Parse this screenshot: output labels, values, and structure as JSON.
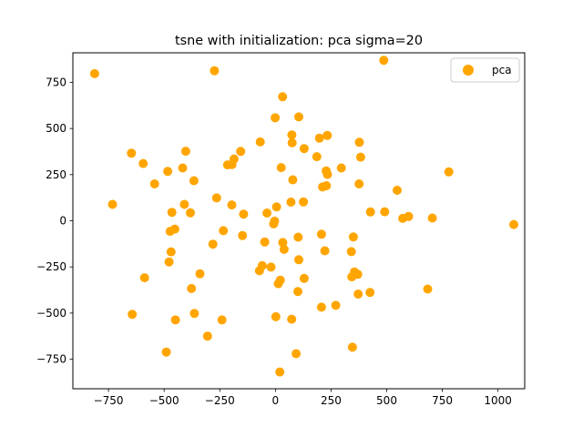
{
  "chart_data": {
    "type": "scatter",
    "title": "tsne with initialization: pca sigma=20",
    "xlabel": "",
    "ylabel": "",
    "xlim": [
      -910,
      1120
    ],
    "ylim": [
      -910,
      910
    ],
    "xticks": [
      -750,
      -500,
      -250,
      0,
      250,
      500,
      750,
      1000
    ],
    "yticks": [
      -750,
      -500,
      -250,
      0,
      250,
      500,
      750
    ],
    "x_tick_labels": [
      "−750",
      "−500",
      "−250",
      "0",
      "250",
      "500",
      "750",
      "1000"
    ],
    "y_tick_labels": [
      "−750",
      "−500",
      "−250",
      "0",
      "250",
      "500",
      "750"
    ],
    "grid": false,
    "legend_position": "top-right",
    "series": [
      {
        "name": "pca",
        "color": "#ffa500",
        "points": [
          [
            -812,
            797
          ],
          [
            -274,
            813
          ],
          [
            487,
            869
          ],
          [
            32,
            672
          ],
          [
            -1,
            558
          ],
          [
            105,
            563
          ],
          [
            233,
            462
          ],
          [
            74,
            465
          ],
          [
            198,
            448
          ],
          [
            -68,
            427
          ],
          [
            75,
            422
          ],
          [
            377,
            425
          ],
          [
            129,
            391
          ],
          [
            -156,
            376
          ],
          [
            -403,
            377
          ],
          [
            -647,
            366
          ],
          [
            186,
            347
          ],
          [
            383,
            345
          ],
          [
            -594,
            310
          ],
          [
            -215,
            303
          ],
          [
            -186,
            335
          ],
          [
            -195,
            305
          ],
          [
            26,
            288
          ],
          [
            296,
            286
          ],
          [
            -417,
            286
          ],
          [
            -484,
            268
          ],
          [
            779,
            265
          ],
          [
            228,
            270
          ],
          [
            234,
            251
          ],
          [
            78,
            222
          ],
          [
            -366,
            217
          ],
          [
            376,
            200
          ],
          [
            229,
            190
          ],
          [
            212,
            183
          ],
          [
            -543,
            200
          ],
          [
            547,
            165
          ],
          [
            -264,
            124
          ],
          [
            70,
            101
          ],
          [
            126,
            102
          ],
          [
            -732,
            89
          ],
          [
            -196,
            86
          ],
          [
            -409,
            89
          ],
          [
            5,
            75
          ],
          [
            -382,
            43
          ],
          [
            -465,
            46
          ],
          [
            -143,
            36
          ],
          [
            -38,
            42
          ],
          [
            427,
            48
          ],
          [
            491,
            49
          ],
          [
            598,
            23
          ],
          [
            572,
            13
          ],
          [
            705,
            15
          ],
          [
            1071,
            -20
          ],
          [
            -4,
            -2
          ],
          [
            -8,
            -17
          ],
          [
            -234,
            -54
          ],
          [
            -452,
            -45
          ],
          [
            -473,
            -57
          ],
          [
            207,
            -73
          ],
          [
            -148,
            -80
          ],
          [
            102,
            -89
          ],
          [
            350,
            -88
          ],
          [
            -48,
            -115
          ],
          [
            33,
            -118
          ],
          [
            -281,
            -127
          ],
          [
            39,
            -155
          ],
          [
            222,
            -163
          ],
          [
            -469,
            -168
          ],
          [
            341,
            -167
          ],
          [
            -478,
            -223
          ],
          [
            105,
            -211
          ],
          [
            -20,
            -251
          ],
          [
            -59,
            -243
          ],
          [
            -72,
            -271
          ],
          [
            370,
            -290
          ],
          [
            -339,
            -287
          ],
          [
            355,
            -277
          ],
          [
            343,
            -304
          ],
          [
            -588,
            -309
          ],
          [
            129,
            -312
          ],
          [
            22,
            -322
          ],
          [
            13,
            -341
          ],
          [
            -377,
            -367
          ],
          [
            684,
            -370
          ],
          [
            101,
            -383
          ],
          [
            425,
            -388
          ],
          [
            372,
            -397
          ],
          [
            271,
            -458
          ],
          [
            207,
            -468
          ],
          [
            -364,
            -502
          ],
          [
            -643,
            -507
          ],
          [
            2,
            -520
          ],
          [
            -240,
            -537
          ],
          [
            73,
            -533
          ],
          [
            -449,
            -537
          ],
          [
            -305,
            -625
          ],
          [
            -490,
            -711
          ],
          [
            346,
            -685
          ],
          [
            93,
            -720
          ],
          [
            20,
            -819
          ]
        ]
      }
    ]
  }
}
